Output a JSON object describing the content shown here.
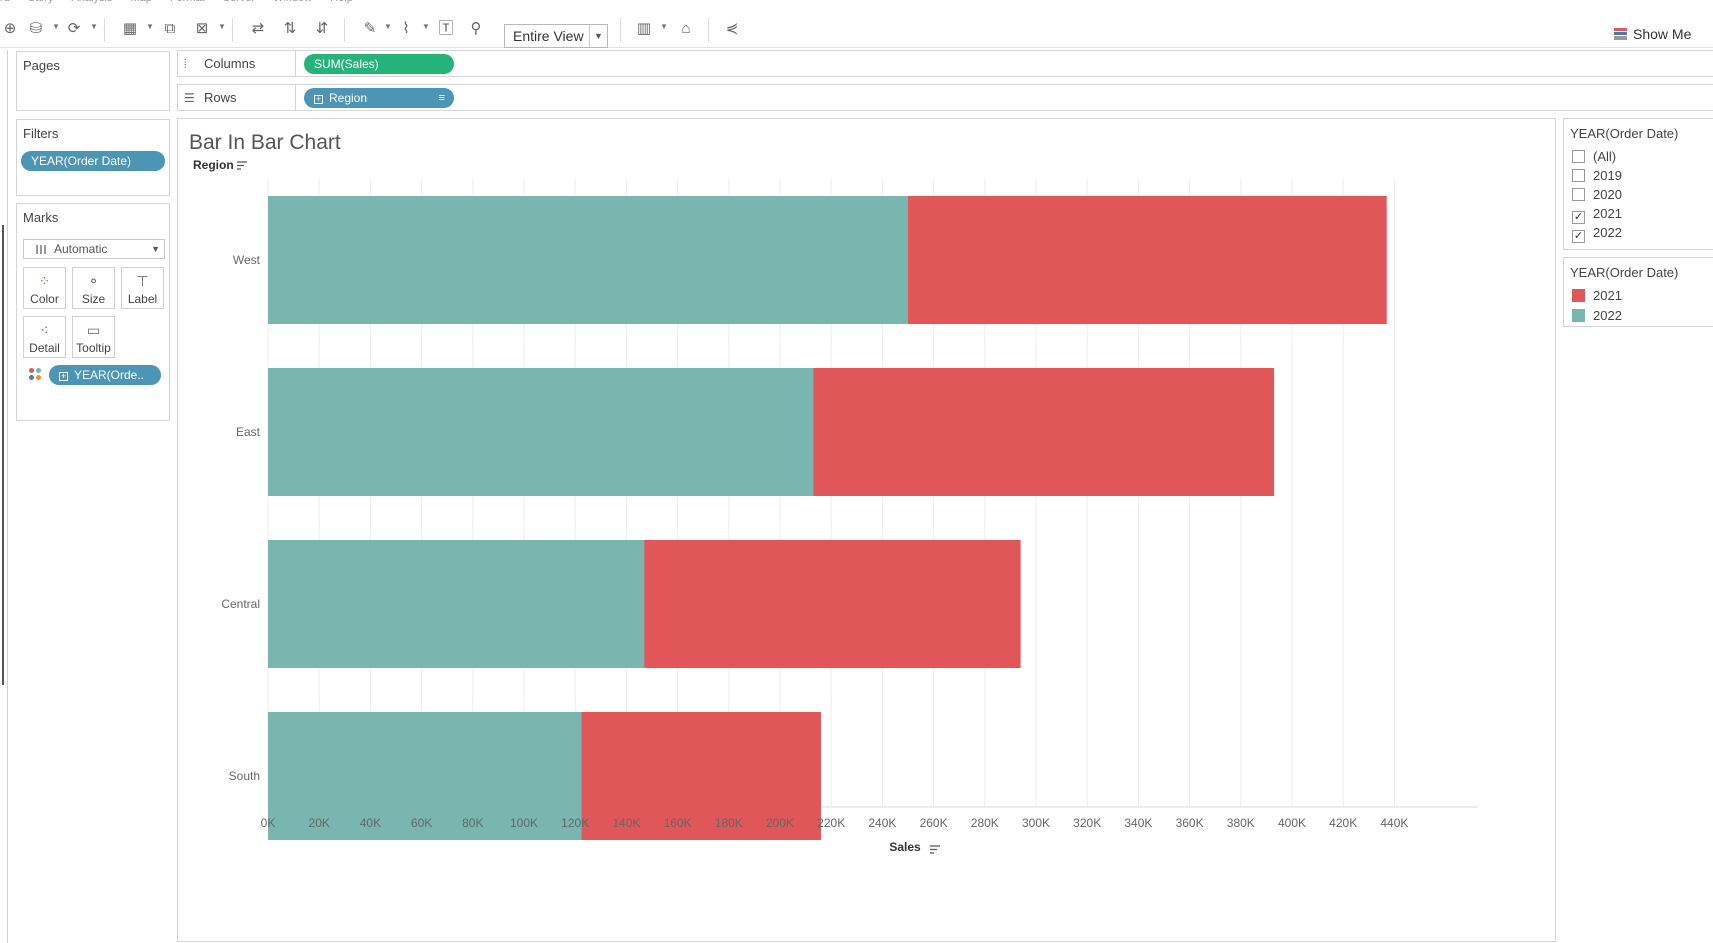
{
  "menu": [
    "rd",
    "Story",
    "Analysis",
    "Map",
    "Format",
    "Server",
    "Window",
    "Help"
  ],
  "toolbar": {
    "fit_value": "Entire View",
    "show_me_label": "Show Me"
  },
  "cards": {
    "pages_title": "Pages",
    "filters_title": "Filters",
    "filter_pill": "YEAR(Order Date)",
    "marks_title": "Marks",
    "mark_type": "Automatic",
    "buttons": {
      "color": "Color",
      "size": "Size",
      "label": "Label",
      "detail": "Detail",
      "tooltip": "Tooltip"
    },
    "mark_pill": "YEAR(Orde.."
  },
  "shelves": {
    "columns_label": "Columns",
    "columns_pill": "SUM(Sales)",
    "rows_label": "Rows",
    "rows_pill": "Region"
  },
  "view": {
    "title": "Bar In Bar Chart",
    "row_header": "Region"
  },
  "year_filter": {
    "title": "YEAR(Order Date)",
    "items": [
      {
        "label": "(All)",
        "checked": false
      },
      {
        "label": "2019",
        "checked": false
      },
      {
        "label": "2020",
        "checked": false
      },
      {
        "label": "2021",
        "checked": true
      },
      {
        "label": "2022",
        "checked": true
      }
    ]
  },
  "year_legend": {
    "title": "YEAR(Order Date)",
    "items": [
      {
        "label": "2021",
        "color": "#e15759"
      },
      {
        "label": "2022",
        "color": "#79b6b0"
      }
    ]
  },
  "chart_data": {
    "type": "bar",
    "orientation": "horizontal",
    "categories": [
      "West",
      "East",
      "Central",
      "South"
    ],
    "series": [
      {
        "name": "2022",
        "color": "#79b6b0",
        "values": [
          250000,
          213000,
          147000,
          122500
        ]
      },
      {
        "name": "2021",
        "color": "#e15759",
        "values": [
          437000,
          393000,
          294000,
          216000
        ]
      }
    ],
    "xlabel": "Sales",
    "ylabel": "Region",
    "xlim": [
      0,
      440000
    ],
    "xticks": [
      "0K",
      "20K",
      "40K",
      "60K",
      "80K",
      "100K",
      "120K",
      "140K",
      "160K",
      "180K",
      "200K",
      "220K",
      "240K",
      "260K",
      "280K",
      "300K",
      "320K",
      "340K",
      "360K",
      "380K",
      "400K",
      "420K",
      "440K"
    ],
    "grid": true
  }
}
